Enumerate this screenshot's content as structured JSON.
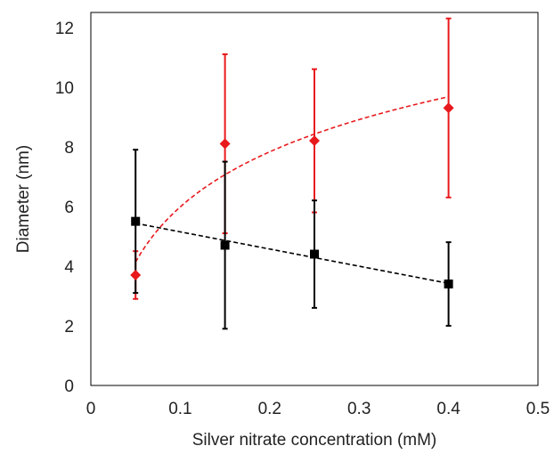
{
  "chart_data": {
    "type": "scatter",
    "xlabel": "Silver nitrate concentration (mM)",
    "ylabel": "Diameter (nm)",
    "xlim": [
      0,
      0.5
    ],
    "ylim": [
      0,
      12.5
    ],
    "xticks": [
      0,
      0.1,
      0.2,
      0.3,
      0.4,
      0.5
    ],
    "xtick_labels": [
      "0",
      "0.1",
      "0.2",
      "0.3",
      "0.4",
      "0.5"
    ],
    "yticks": [
      0,
      2,
      4,
      6,
      8,
      10,
      12
    ],
    "ytick_labels": [
      "0",
      "2",
      "4",
      "6",
      "8",
      "10",
      "12"
    ],
    "grid": false,
    "legend": "none",
    "series": [
      {
        "marker": "diamond",
        "color": "#e8191c",
        "x": [
          0.05,
          0.15,
          0.25,
          0.4
        ],
        "y": [
          3.7,
          8.1,
          8.2,
          9.3
        ],
        "yerr_low": [
          2.9,
          5.1,
          5.8,
          6.3
        ],
        "yerr_high": [
          4.5,
          11.1,
          10.6,
          12.3
        ],
        "trendline": {
          "kind": "logarithmic",
          "style": "dashed",
          "x_from": 0.05,
          "x_to": 0.4
        }
      },
      {
        "marker": "square",
        "color": "#000000",
        "x": [
          0.05,
          0.15,
          0.25,
          0.4
        ],
        "y": [
          5.5,
          4.7,
          4.4,
          3.4
        ],
        "yerr_low": [
          3.1,
          1.9,
          2.6,
          2.0
        ],
        "yerr_high": [
          7.9,
          7.5,
          6.2,
          4.8
        ],
        "trendline": {
          "kind": "linear",
          "style": "dashed",
          "x_from": 0.05,
          "x_to": 0.4
        }
      }
    ]
  }
}
